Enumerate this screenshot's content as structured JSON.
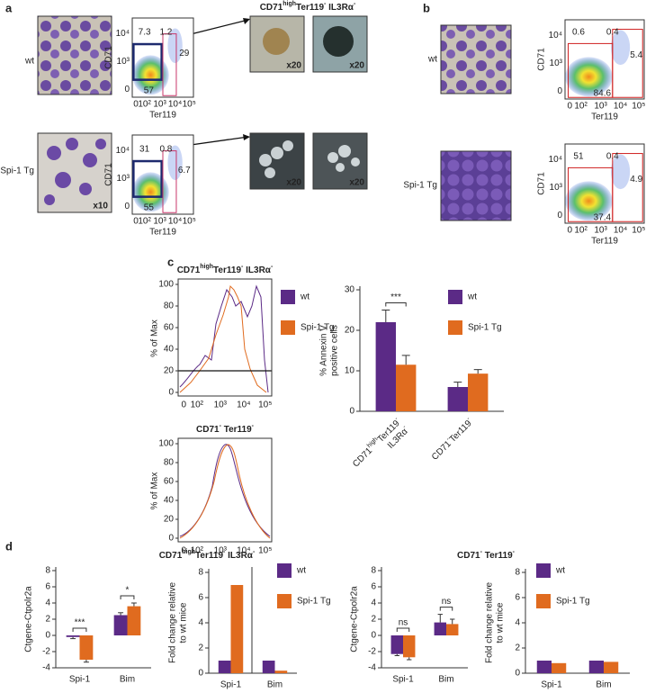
{
  "panel_a": {
    "label": "a",
    "title_parts": [
      "CD71",
      "high",
      "Ter119",
      "-",
      " IL3Rα",
      "-"
    ],
    "rows": [
      {
        "name": "wt",
        "image_labels": [
          "x20",
          "x20"
        ],
        "flow": {
          "ylabel": "CD71",
          "xlabel": "Ter119",
          "yticks": [
            "10⁴",
            "10³",
            "0"
          ],
          "xticks": [
            "0",
            "10²",
            "10³",
            "10⁴",
            "10⁵"
          ],
          "values": [
            7.3,
            1.2,
            29,
            57
          ]
        }
      },
      {
        "name": "Spi-1 Tg",
        "magnification": "x10",
        "image_labels": [
          "x20",
          "x20"
        ],
        "flow": {
          "ylabel": "CD71",
          "xlabel": "Ter119",
          "yticks": [
            "10⁴",
            "10³",
            "0"
          ],
          "xticks": [
            "0",
            "10²",
            "10³",
            "10⁴",
            "10⁵"
          ],
          "values": [
            31,
            0.8,
            6.7,
            55
          ]
        }
      }
    ]
  },
  "panel_b": {
    "label": "b",
    "rows": [
      {
        "name": "wt",
        "flow": {
          "ylabel": "CD71",
          "xlabel": "Ter119",
          "yticks": [
            "10⁴",
            "10³",
            "0"
          ],
          "xticks": [
            "0",
            "10²",
            "10³",
            "10⁴",
            "10⁵"
          ],
          "values": [
            0.6,
            0.4,
            5.4,
            84.6
          ]
        }
      },
      {
        "name": "Spi-1 Tg",
        "flow": {
          "ylabel": "CD71",
          "xlabel": "Ter119",
          "yticks": [
            "10⁴",
            "10³",
            "0"
          ],
          "xticks": [
            "0",
            "10²",
            "10³",
            "10⁴",
            "10⁵"
          ],
          "values": [
            51,
            0.4,
            4.9,
            37.4
          ]
        }
      }
    ]
  },
  "panel_c": {
    "label": "c",
    "legend": [
      {
        "name": "wt",
        "color": "#5b2a86"
      },
      {
        "name": "Spi-1 Tg",
        "color": "#e06b1f"
      }
    ],
    "histograms": [
      {
        "title_parts": [
          "CD71",
          "high",
          "Ter119",
          "-",
          " IL3Rα",
          "-"
        ],
        "ylabel": "% of Max",
        "ylim": [
          0,
          100
        ],
        "yticks": [
          0,
          20,
          40,
          60,
          80,
          100
        ],
        "xticks": [
          "0",
          "10²",
          "10³",
          "10⁴",
          "10⁵"
        ]
      },
      {
        "title_parts": [
          "CD71",
          "-",
          " Ter119",
          "-"
        ],
        "ylabel": "% of Max",
        "ylim": [
          0,
          100
        ],
        "yticks": [
          0,
          20,
          40,
          60,
          80,
          100
        ],
        "xticks": [
          "0",
          "10²",
          "10³",
          "10⁴",
          "10⁵"
        ]
      }
    ],
    "annexin": {
      "type": "bar",
      "ylabel": [
        "% Annexin V",
        "positive cells"
      ],
      "ylim": [
        0,
        30
      ],
      "yticks": [
        0,
        10,
        20,
        30
      ],
      "categories": [
        [
          [
            "CD71",
            "high",
            "Ter119",
            "-"
          ],
          [
            "IL3Rα",
            "-"
          ]
        ],
        [
          [
            "CD71",
            "-",
            "Ter119",
            "-"
          ]
        ]
      ],
      "significance": [
        "***",
        null
      ],
      "legend": true,
      "series": [
        {
          "name": "wt",
          "color": "#5b2a86",
          "values": [
            22,
            6
          ],
          "errors": [
            3,
            1.2
          ]
        },
        {
          "name": "Spi-1 Tg",
          "color": "#e06b1f",
          "values": [
            11.5,
            9.3
          ],
          "errors": [
            2.3,
            1
          ]
        }
      ]
    }
  },
  "panel_d": {
    "label": "d",
    "charts": [
      {
        "type": "bar",
        "title_parts": [
          "CD71",
          "high",
          "Ter119",
          "-",
          " IL3Rα",
          "-"
        ],
        "ylabel": [
          "Ctgene-Ctpolr2a"
        ],
        "ylim": [
          -4,
          8
        ],
        "yticks": [
          -4,
          -2,
          0,
          2,
          4,
          6,
          8
        ],
        "categories": [
          "Spi-1",
          "Bim"
        ],
        "significance": [
          "***",
          "*"
        ],
        "legend": false,
        "series": [
          {
            "color": "#5b2a86",
            "values": [
              -0.2,
              2.5
            ],
            "errors": [
              0.2,
              0.3
            ]
          },
          {
            "color": "#e06b1f",
            "values": [
              -3,
              3.6
            ],
            "errors": [
              0.3,
              0.4
            ]
          }
        ]
      },
      {
        "type": "bar",
        "ylabel": [
          "Fold change relative",
          "to wt mice"
        ],
        "ylim": [
          0,
          8
        ],
        "yticks": [
          0,
          2,
          4,
          6,
          8
        ],
        "categories": [
          "Spi-1",
          "Bim"
        ],
        "legend": true,
        "series": [
          {
            "name": "wt",
            "color": "#5b2a86",
            "values": [
              1,
              1
            ]
          },
          {
            "name": "Spi-1 Tg",
            "color": "#e06b1f",
            "values": [
              7,
              0.2
            ]
          }
        ]
      },
      {
        "type": "bar",
        "title_parts": [
          "CD71",
          "-",
          " Ter119",
          "-"
        ],
        "ylabel": [
          "Ctgene-Ctpolr2a"
        ],
        "ylim": [
          -4,
          8
        ],
        "yticks": [
          -4,
          -2,
          0,
          2,
          4,
          6,
          8
        ],
        "categories": [
          "Spi-1",
          "Bim"
        ],
        "significance": [
          "ns",
          "ns"
        ],
        "legend": false,
        "series": [
          {
            "color": "#5b2a86",
            "values": [
              -2.3,
              1.6
            ],
            "errors": [
              0.2,
              1
            ]
          },
          {
            "color": "#e06b1f",
            "values": [
              -2.7,
              1.4
            ],
            "errors": [
              0.3,
              0.6
            ]
          }
        ]
      },
      {
        "type": "bar",
        "ylabel": [
          "Fold change relative",
          "to wt mice"
        ],
        "ylim": [
          0,
          8
        ],
        "yticks": [
          0,
          2,
          4,
          6,
          8
        ],
        "categories": [
          "Spi-1",
          "Bim"
        ],
        "legend": true,
        "series": [
          {
            "name": "wt",
            "color": "#5b2a86",
            "values": [
              1,
              1
            ]
          },
          {
            "name": "Spi-1 Tg",
            "color": "#e06b1f",
            "values": [
              0.8,
              0.9
            ]
          }
        ]
      }
    ]
  }
}
